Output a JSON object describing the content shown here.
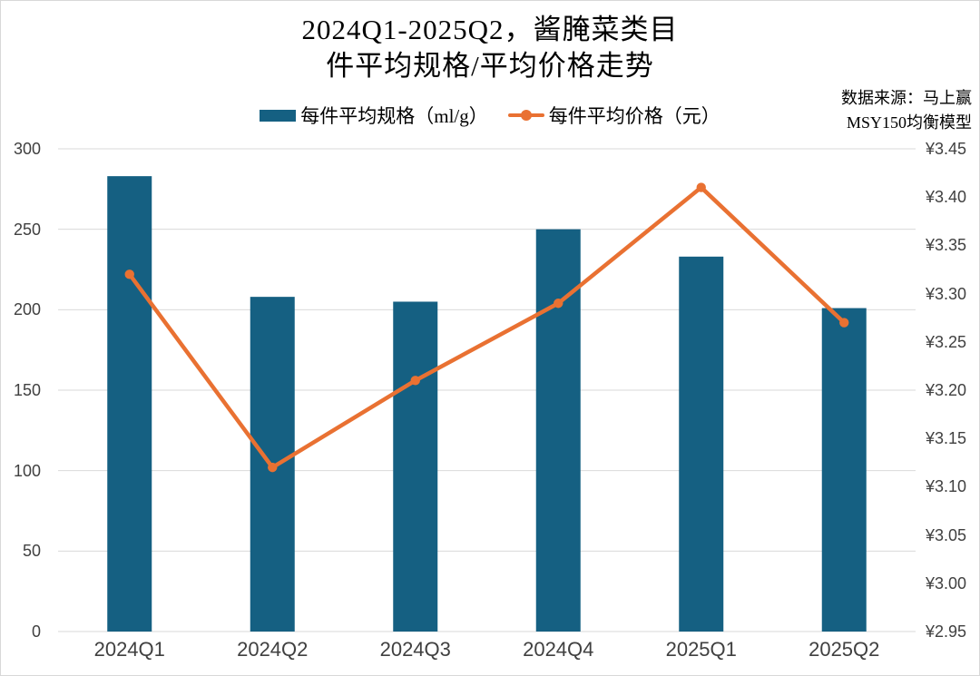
{
  "title": {
    "line1": "2024Q1-2025Q2，酱腌菜类目",
    "line2": "件平均规格/平均价格走势"
  },
  "legend": {
    "bar_label": "每件平均规格（ml/g）",
    "line_label": "每件平均价格（元）"
  },
  "source": {
    "line1": "数据来源：马上赢",
    "line2": "MSY150均衡模型"
  },
  "colors": {
    "bar": "#156082",
    "line": "#E97132",
    "grid": "#D9D9D9",
    "tick_text": "#404040",
    "title_text": "#000000"
  },
  "chart_data": {
    "type": "bar",
    "subtype": "combo dual-axis: bars on left axis, line with circle markers on right axis",
    "title": "2024Q1-2025Q2，酱腌菜类目 件平均规格/平均价格走势",
    "categories": [
      "2024Q1",
      "2024Q2",
      "2024Q3",
      "2024Q4",
      "2025Q1",
      "2025Q2"
    ],
    "series": [
      {
        "name": "每件平均规格（ml/g）",
        "type": "bar",
        "axis": "left",
        "color": "#156082",
        "values": [
          283,
          208,
          205,
          250,
          233,
          201
        ]
      },
      {
        "name": "每件平均价格（元）",
        "type": "line",
        "axis": "right",
        "color": "#E97132",
        "values": [
          3.32,
          3.12,
          3.21,
          3.29,
          3.41,
          3.27
        ]
      }
    ],
    "left_axis": {
      "min": 0,
      "max": 300,
      "step": 50,
      "tick_labels": [
        "300",
        "250",
        "200",
        "150",
        "100",
        "50",
        "0"
      ]
    },
    "right_axis": {
      "min": 2.95,
      "max": 3.45,
      "step": 0.05,
      "tick_labels": [
        "¥3.45",
        "¥3.40",
        "¥3.35",
        "¥3.30",
        "¥3.25",
        "¥3.20",
        "¥3.15",
        "¥3.10",
        "¥3.05",
        "¥3.00",
        "¥2.95"
      ]
    },
    "grid": "horizontal gridlines at left-axis ticks",
    "legend_position": "top"
  }
}
